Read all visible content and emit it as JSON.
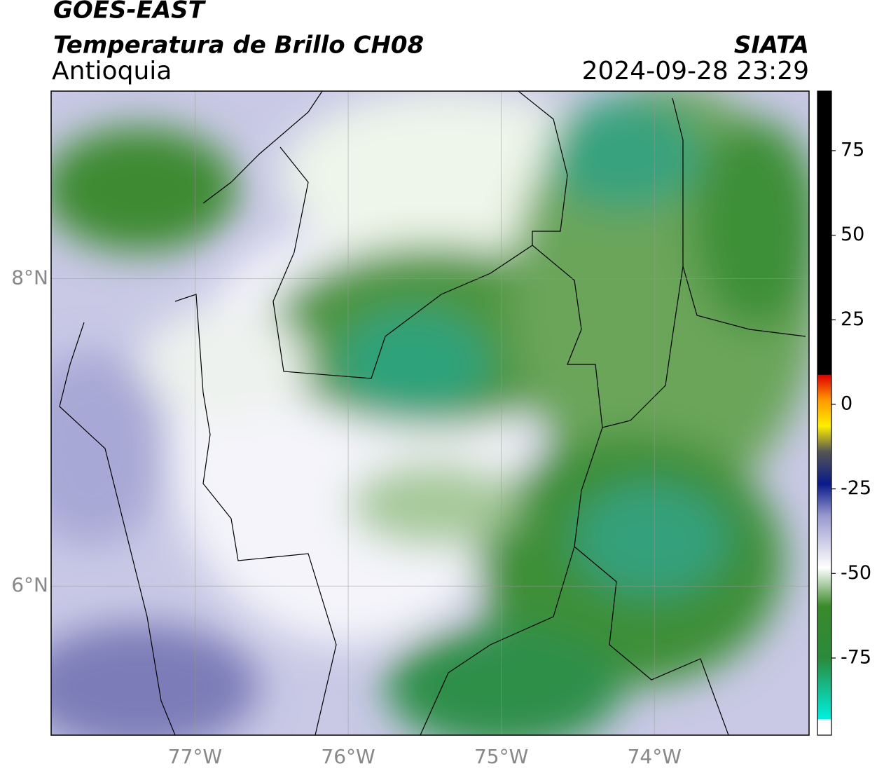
{
  "header": {
    "satellite": "GOES-EAST",
    "product": "Temperatura de Brillo CH08",
    "region": "Antioquia",
    "source": "SIATA",
    "datetime": "2024-09-28 23:29"
  },
  "map": {
    "lonlim": [
      -77.94,
      -72.99
    ],
    "latlim": [
      5.03,
      9.22
    ],
    "lon_ticks": [
      {
        "value": -77,
        "label": "77°W"
      },
      {
        "value": -76,
        "label": "76°W"
      },
      {
        "value": -75,
        "label": "75°W"
      },
      {
        "value": -74,
        "label": "74°W"
      }
    ],
    "lat_ticks": [
      {
        "value": 8,
        "label": "8°N"
      },
      {
        "value": 6,
        "label": "6°N"
      }
    ]
  },
  "colorbar": {
    "lim": [
      -97.8,
      92.6
    ],
    "ticks": [
      75,
      50,
      25,
      0,
      -25,
      -50,
      -75
    ]
  }
}
